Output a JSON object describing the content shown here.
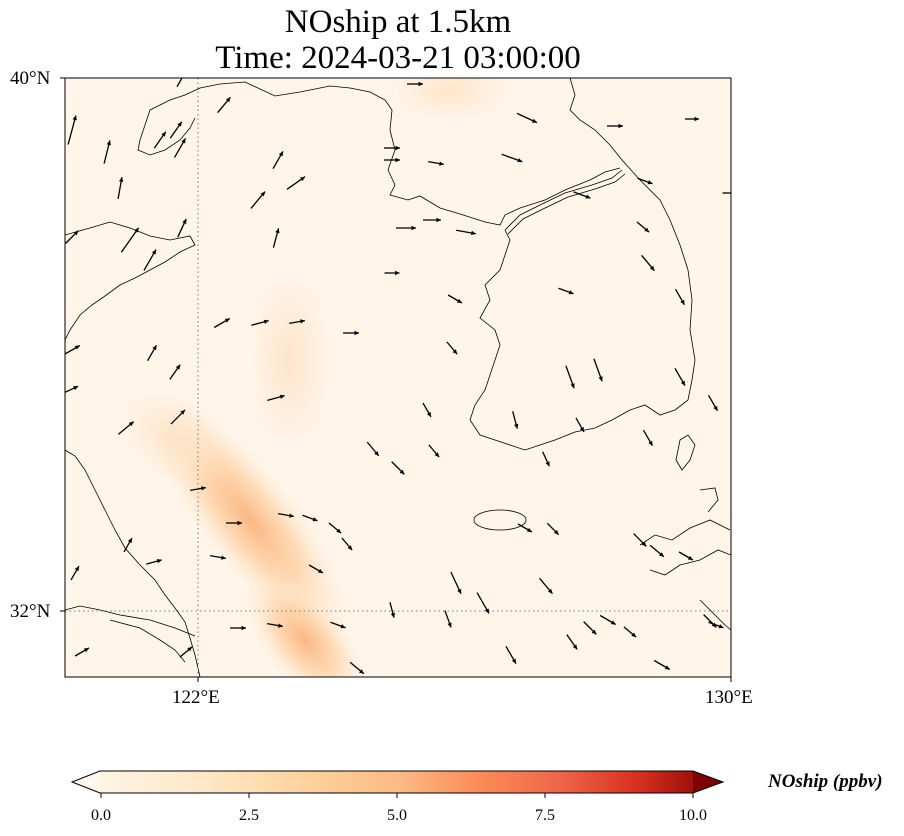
{
  "title": {
    "line1": "NOship at 1.5km",
    "line2": "Time: 2024-03-21 03:00:00"
  },
  "axes": {
    "lat_labels": [
      "40°N",
      "32°N"
    ],
    "lon_labels": [
      "122°E",
      "130°E"
    ],
    "lon_range": [
      120.4,
      130
    ],
    "lat_range": [
      31,
      40
    ],
    "gridlines": "dotted at 122°E and 32°N"
  },
  "colorbar": {
    "label": "NOship (ppbv)",
    "min": 0.0,
    "max": 10.0,
    "ticks": [
      "0.0",
      "2.5",
      "5.0",
      "7.5",
      "10.0"
    ],
    "colormap": "OrRd",
    "extend": "both",
    "colors": [
      "#fff7ec",
      "#fdd49e",
      "#fc8d59",
      "#d7301f",
      "#7f0000"
    ]
  },
  "chart_data": {
    "type": "heatmap",
    "field": "NOship",
    "units": "ppbv",
    "level": "1.5km",
    "peak_value_approx": 3.0,
    "plume": "enhanced values along a shipping corridor off the Chinese coast southeast of Shandong, oriented NW–SE, centred near 122.5°E 33°N",
    "wind_vectors": "overlaid arrows showing wind direction; generally southeastward over the Yellow Sea and Korean Peninsula"
  }
}
